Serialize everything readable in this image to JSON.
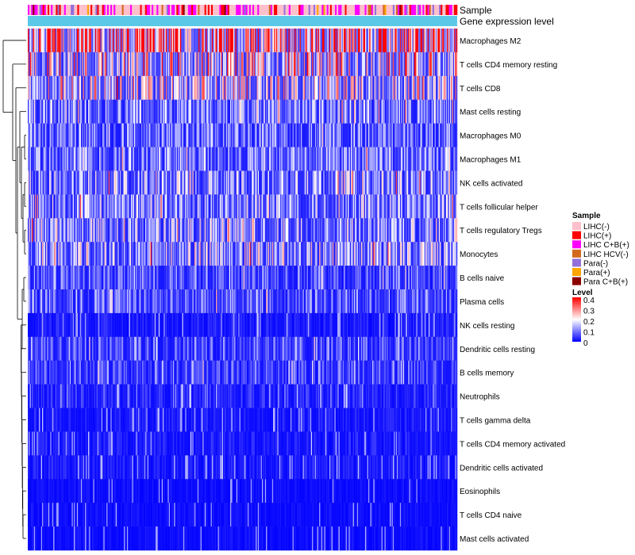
{
  "chart_data": {
    "type": "heatmap",
    "annotation_rows": [
      "Sample",
      "Gene expression level"
    ],
    "rows": [
      "Macrophages M2",
      "T cells CD4 memory resting",
      "T cells CD8",
      "Mast cells resting",
      "Macrophages M0",
      "Macrophages M1",
      "NK cells activated",
      "T cells follicular helper",
      "T cells regulatory  Tregs",
      "Monocytes",
      "B cells naive",
      "Plasma cells",
      "NK cells resting",
      "Dendritic cells resting",
      "B cells memory",
      "Neutrophils",
      "T cells gamma delta",
      "T cells CD4 memory activated",
      "Dendritic cells activated",
      "Eosinophils",
      "T cells CD4 naive",
      "Mast cells activated"
    ],
    "row_mean_level": [
      0.28,
      0.17,
      0.15,
      0.09,
      0.08,
      0.09,
      0.1,
      0.1,
      0.11,
      0.12,
      0.06,
      0.07,
      0.02,
      0.06,
      0.05,
      0.03,
      0.02,
      0.02,
      0.02,
      0.01,
      0.01,
      0.01
    ],
    "dendrogram": "rows clustered (hierarchical), left side",
    "legend_sample": {
      "title": "Sample",
      "entries": [
        {
          "label": "LIHC(-)",
          "color": "#ffc0cb"
        },
        {
          "label": "LIHC(+)",
          "color": "#ff0000"
        },
        {
          "label": "LIHC C+B(+)",
          "color": "#ff00ff"
        },
        {
          "label": "LIHC HCV(-)",
          "color": "#d2691e"
        },
        {
          "label": "Para(-)",
          "color": "#9370db"
        },
        {
          "label": "Para(+)",
          "color": "#ffa500"
        },
        {
          "label": "Para C+B(+)",
          "color": "#8b0000"
        }
      ]
    },
    "legend_level": {
      "title": "Level",
      "ticks": [
        "0.4",
        "0.3",
        "0.2",
        "0.1",
        "0"
      ],
      "range": [
        0,
        0.4
      ],
      "colors": [
        "#0000ff",
        "#ffffff",
        "#ff0000"
      ]
    },
    "expression_bar_color": "#5bc8e8"
  }
}
